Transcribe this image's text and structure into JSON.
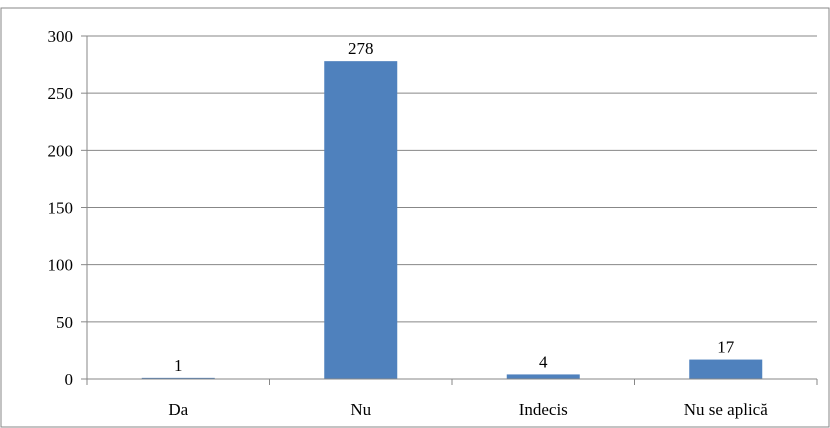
{
  "chart_data": {
    "type": "bar",
    "categories": [
      "Da",
      "Nu",
      "Indecis",
      "Nu se aplică"
    ],
    "values": [
      1,
      278,
      4,
      17
    ],
    "data_labels": [
      "1",
      "278",
      "4",
      "17"
    ],
    "ylim": [
      0,
      300
    ],
    "yticks": [
      0,
      50,
      100,
      150,
      200,
      250,
      300
    ],
    "ytick_labels": [
      "0",
      "50",
      "100",
      "150",
      "200",
      "250",
      "300"
    ],
    "grid": true,
    "legend": "none",
    "colors": {
      "bar": "#4F81BD",
      "grid": "#878787",
      "axis": "#878787",
      "frame": "#878787",
      "text": "#000000"
    }
  }
}
